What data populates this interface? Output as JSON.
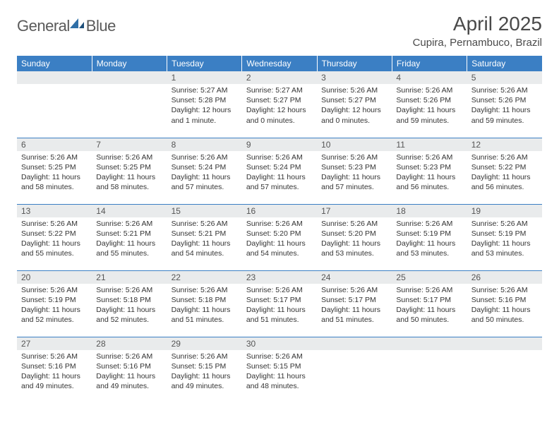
{
  "logo": {
    "text_general": "General",
    "text_blue": "Blue"
  },
  "title": "April 2025",
  "location": "Cupira, Pernambuco, Brazil",
  "header_bg": "#3b7fc4",
  "header_fg": "#ffffff",
  "daynum_bg": "#e9ebec",
  "row_border": "#3b7fc4",
  "weekdays": [
    "Sunday",
    "Monday",
    "Tuesday",
    "Wednesday",
    "Thursday",
    "Friday",
    "Saturday"
  ],
  "weeks": [
    [
      null,
      null,
      {
        "n": "1",
        "sr": "5:27 AM",
        "ss": "5:28 PM",
        "dl": "12 hours and 1 minute."
      },
      {
        "n": "2",
        "sr": "5:27 AM",
        "ss": "5:27 PM",
        "dl": "12 hours and 0 minutes."
      },
      {
        "n": "3",
        "sr": "5:26 AM",
        "ss": "5:27 PM",
        "dl": "12 hours and 0 minutes."
      },
      {
        "n": "4",
        "sr": "5:26 AM",
        "ss": "5:26 PM",
        "dl": "11 hours and 59 minutes."
      },
      {
        "n": "5",
        "sr": "5:26 AM",
        "ss": "5:26 PM",
        "dl": "11 hours and 59 minutes."
      }
    ],
    [
      {
        "n": "6",
        "sr": "5:26 AM",
        "ss": "5:25 PM",
        "dl": "11 hours and 58 minutes."
      },
      {
        "n": "7",
        "sr": "5:26 AM",
        "ss": "5:25 PM",
        "dl": "11 hours and 58 minutes."
      },
      {
        "n": "8",
        "sr": "5:26 AM",
        "ss": "5:24 PM",
        "dl": "11 hours and 57 minutes."
      },
      {
        "n": "9",
        "sr": "5:26 AM",
        "ss": "5:24 PM",
        "dl": "11 hours and 57 minutes."
      },
      {
        "n": "10",
        "sr": "5:26 AM",
        "ss": "5:23 PM",
        "dl": "11 hours and 57 minutes."
      },
      {
        "n": "11",
        "sr": "5:26 AM",
        "ss": "5:23 PM",
        "dl": "11 hours and 56 minutes."
      },
      {
        "n": "12",
        "sr": "5:26 AM",
        "ss": "5:22 PM",
        "dl": "11 hours and 56 minutes."
      }
    ],
    [
      {
        "n": "13",
        "sr": "5:26 AM",
        "ss": "5:22 PM",
        "dl": "11 hours and 55 minutes."
      },
      {
        "n": "14",
        "sr": "5:26 AM",
        "ss": "5:21 PM",
        "dl": "11 hours and 55 minutes."
      },
      {
        "n": "15",
        "sr": "5:26 AM",
        "ss": "5:21 PM",
        "dl": "11 hours and 54 minutes."
      },
      {
        "n": "16",
        "sr": "5:26 AM",
        "ss": "5:20 PM",
        "dl": "11 hours and 54 minutes."
      },
      {
        "n": "17",
        "sr": "5:26 AM",
        "ss": "5:20 PM",
        "dl": "11 hours and 53 minutes."
      },
      {
        "n": "18",
        "sr": "5:26 AM",
        "ss": "5:19 PM",
        "dl": "11 hours and 53 minutes."
      },
      {
        "n": "19",
        "sr": "5:26 AM",
        "ss": "5:19 PM",
        "dl": "11 hours and 53 minutes."
      }
    ],
    [
      {
        "n": "20",
        "sr": "5:26 AM",
        "ss": "5:19 PM",
        "dl": "11 hours and 52 minutes."
      },
      {
        "n": "21",
        "sr": "5:26 AM",
        "ss": "5:18 PM",
        "dl": "11 hours and 52 minutes."
      },
      {
        "n": "22",
        "sr": "5:26 AM",
        "ss": "5:18 PM",
        "dl": "11 hours and 51 minutes."
      },
      {
        "n": "23",
        "sr": "5:26 AM",
        "ss": "5:17 PM",
        "dl": "11 hours and 51 minutes."
      },
      {
        "n": "24",
        "sr": "5:26 AM",
        "ss": "5:17 PM",
        "dl": "11 hours and 51 minutes."
      },
      {
        "n": "25",
        "sr": "5:26 AM",
        "ss": "5:17 PM",
        "dl": "11 hours and 50 minutes."
      },
      {
        "n": "26",
        "sr": "5:26 AM",
        "ss": "5:16 PM",
        "dl": "11 hours and 50 minutes."
      }
    ],
    [
      {
        "n": "27",
        "sr": "5:26 AM",
        "ss": "5:16 PM",
        "dl": "11 hours and 49 minutes."
      },
      {
        "n": "28",
        "sr": "5:26 AM",
        "ss": "5:16 PM",
        "dl": "11 hours and 49 minutes."
      },
      {
        "n": "29",
        "sr": "5:26 AM",
        "ss": "5:15 PM",
        "dl": "11 hours and 49 minutes."
      },
      {
        "n": "30",
        "sr": "5:26 AM",
        "ss": "5:15 PM",
        "dl": "11 hours and 48 minutes."
      },
      null,
      null,
      null
    ]
  ],
  "labels": {
    "sunrise": "Sunrise:",
    "sunset": "Sunset:",
    "daylight": "Daylight:"
  }
}
